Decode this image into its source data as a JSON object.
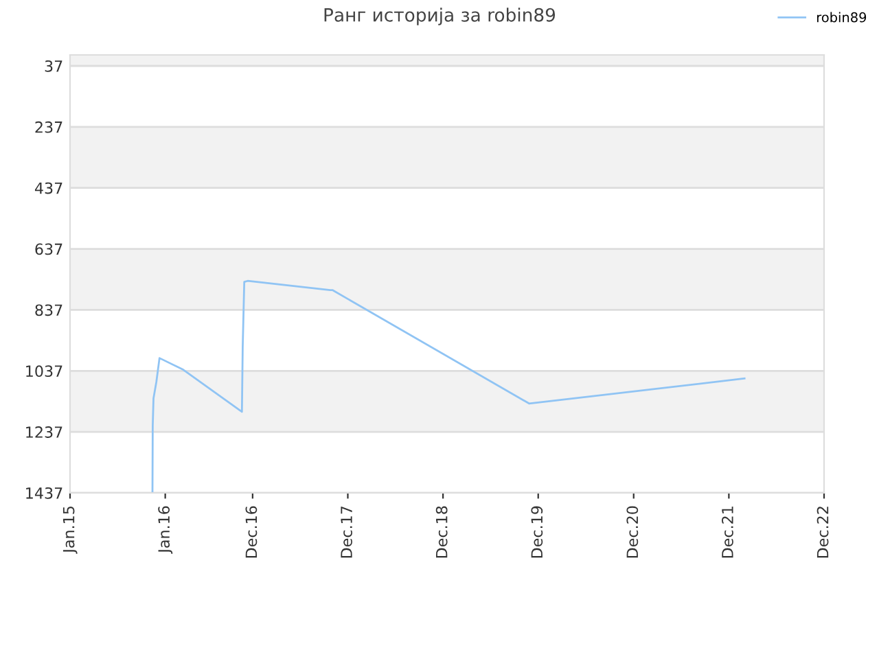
{
  "chart_data": {
    "type": "line",
    "title": "Ранг историја за robin89",
    "x": [
      "2015-11-13",
      "2015-11-14",
      "2015-11-17",
      "2015-11-28",
      "2015-12-10",
      "2016-03-10",
      "2016-10-21",
      "2016-10-24",
      "2016-10-30",
      "2016-11-12",
      "2017-09-25",
      "2017-10-03",
      "2019-10-27",
      "2022-01-30"
    ],
    "series": [
      {
        "name": "robin89",
        "color": "#90c4f4",
        "values": [
          1437,
          1217,
          1127,
          1073,
          995,
          1033,
          1171,
          958,
          745,
          742,
          772,
          772,
          1144,
          1062
        ]
      }
    ],
    "ylim": [
      1437,
      1
    ],
    "yticks": [
      37,
      237,
      437,
      637,
      837,
      1037,
      1237,
      1437
    ],
    "xlim": [
      "2015-01-01",
      "2022-12-01"
    ],
    "xticks": [
      {
        "value": "2015-01-01",
        "label": "Jan.15"
      },
      {
        "value": "2016-01-01",
        "label": "Jan.16"
      },
      {
        "value": "2016-12-01",
        "label": "Dec.16"
      },
      {
        "value": "2017-12-01",
        "label": "Dec.17"
      },
      {
        "value": "2018-12-01",
        "label": "Dec.18"
      },
      {
        "value": "2019-12-01",
        "label": "Dec.19"
      },
      {
        "value": "2020-12-01",
        "label": "Dec.20"
      },
      {
        "value": "2021-12-01",
        "label": "Dec.21"
      },
      {
        "value": "2022-12-01",
        "label": "Dec.22"
      }
    ],
    "grid": "y",
    "legend": "top right",
    "marker": "none",
    "line_style": "solid"
  }
}
